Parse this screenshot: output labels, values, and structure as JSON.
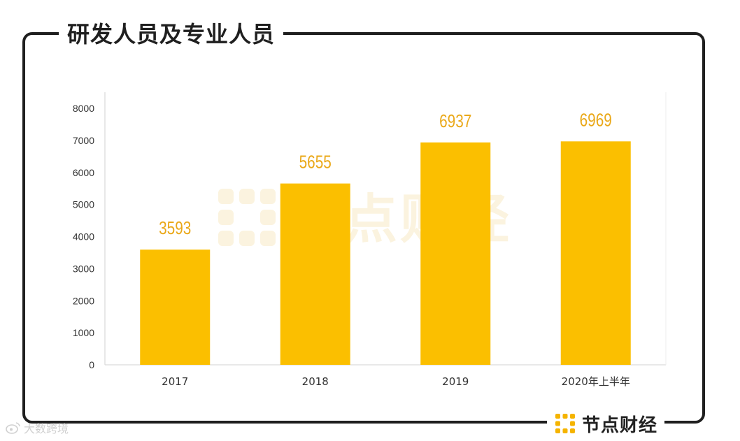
{
  "title": "研发人员及专业人员",
  "colors": {
    "bar": "#fbbf00",
    "label": "#eaa818",
    "axis": "#333333",
    "frame": "#1f1f1f",
    "grid": "#d9d9d9",
    "watermark": "#fbf3df"
  },
  "watermark": {
    "text": "节点财经",
    "icon": "dot-grid-logo-icon"
  },
  "brand": {
    "name": "节点财经",
    "icon": "dot-grid-logo-icon"
  },
  "source_watermark": {
    "text": "大数跨境",
    "icon": "weibo-icon"
  },
  "chart_data": {
    "type": "bar",
    "title": "研发人员及专业人员",
    "categories": [
      "2017",
      "2018",
      "2019",
      "2020年上半年"
    ],
    "values": [
      3593,
      5655,
      6937,
      6969
    ],
    "ylim": [
      0,
      8000
    ],
    "yticks": [
      "0",
      "1000",
      "2000",
      "3000",
      "4000",
      "5000",
      "6000",
      "7000",
      "8000"
    ],
    "grid": false,
    "legend": "none",
    "data_labels": true
  }
}
